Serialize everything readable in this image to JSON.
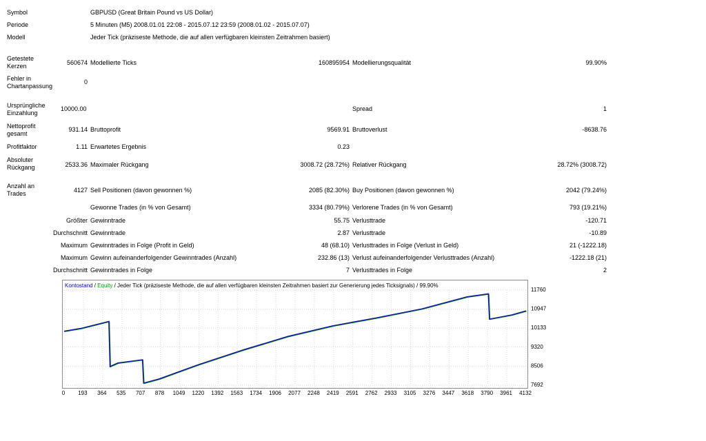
{
  "header": [
    {
      "label": "Symbol",
      "value": "GBPUSD (Great Britain Pound vs US Dollar)"
    },
    {
      "label": "Periode",
      "value": "5 Minuten (M5) 2008.01.01 22:08 - 2015.07.12 23:59 (2008.01.02 - 2015.07.07)"
    },
    {
      "label": "Modell",
      "value": "Jeder Tick (präziseste Methode, die auf allen verfügbaren kleinsten Zeitrahmen basiert)"
    }
  ],
  "stats": {
    "getestete_kerzen": {
      "l1": "Getestete",
      "l2": "Kerzen",
      "value": "560674"
    },
    "modellierte_ticks": {
      "label": "Modellierte Ticks",
      "value": "160895954"
    },
    "modellierungsqualitaet": {
      "label": "Modellierungsqualität",
      "value": "99.90%"
    },
    "fehler": {
      "l1": "Fehler in",
      "l2": "Chartanpassung",
      "value": "0"
    },
    "einzahlung": {
      "l1": "Ursprüngliche",
      "l2": "Einzahlung",
      "value": "10000.00"
    },
    "spread": {
      "label": "Spread",
      "value": "1"
    },
    "nettoprofit": {
      "l1": "Nettoprofit",
      "l2": "gesamt",
      "value": "931.14"
    },
    "bruttoprofit": {
      "label": "Bruttoprofit",
      "value": "9569.91"
    },
    "bruttoverlust": {
      "label": "Bruttoverlust",
      "value": "-8638.76"
    },
    "profitfaktor": {
      "label": "Profitfaktor",
      "value": "1.11"
    },
    "erwartetes": {
      "label": "Erwartetes Ergebnis",
      "value": "0.23"
    },
    "abs_rueckgang": {
      "l1": "Absoluter",
      "l2": "Rückgang",
      "value": "2533.36"
    },
    "max_rueckgang": {
      "label": "Maximaler Rückgang",
      "value": "3008.72 (28.72%)"
    },
    "rel_rueckgang": {
      "label": "Relativer Rückgang",
      "value": "28.72% (3008.72)"
    },
    "anzahl_trades": {
      "l1": "Anzahl an",
      "l2": "Trades",
      "value": "4127"
    },
    "sell": {
      "label": "Sell Positionen (davon gewonnen %)",
      "value": "2085 (82.30%)"
    },
    "buy": {
      "label": "Buy Positionen (davon gewonnen %)",
      "value": "2042 (79.24%)"
    },
    "gewonnene": {
      "label": "Gewonne Trades (in % von Gesamt)",
      "value": "3334 (80.79%)"
    },
    "verlorene": {
      "label": "Verlorene Trades (in % von Gesamt)",
      "value": "793 (19.21%)"
    },
    "rows": [
      {
        "prefix": "Größter",
        "label1": "Gewinntrade",
        "value1": "55.75",
        "label2": "Verlusttrade",
        "value2": "-120.71"
      },
      {
        "prefix": "Durchschnitt",
        "label1": "Gewinntrade",
        "value1": "2.87",
        "label2": "Verlusttrade",
        "value2": "-10.89"
      },
      {
        "prefix": "Maximum",
        "label1": "Gewinntrades in Folge (Profit in Geld)",
        "value1": "48 (68.10)",
        "label2": "Verlusttrades in Folge (Verlust in Geld)",
        "value2": "21 (-1222.18)"
      },
      {
        "prefix": "Maximum",
        "label1": "Gewinn aufeinanderfolgender Gewinntrades (Anzahl)",
        "value1": "232.86 (13)",
        "label2": "Verlust aufeinanderfolgender Verlusttrades (Anzahl)",
        "value2": "-1222.18 (21)"
      },
      {
        "prefix": "Durchschnitt",
        "label1": "Gewinntrades in Folge",
        "value1": "7",
        "label2": "Verlusttrades in Folge",
        "value2": "2"
      }
    ]
  },
  "chart_data": {
    "type": "line",
    "legend_parts": {
      "kontostand": "Kontostand",
      "sep": " / ",
      "equity": "Equity",
      "rest": " / Jeder Tick (präziseste Methode, die auf allen verfügbaren kleinsten Zeitrahmen basiert zur Generierung jedes Ticksignals) / 99.90%"
    },
    "x_ticks": [
      "0",
      "193",
      "364",
      "535",
      "707",
      "878",
      "1049",
      "1220",
      "1392",
      "1563",
      "1734",
      "1906",
      "2077",
      "2248",
      "2419",
      "2591",
      "2762",
      "2933",
      "3105",
      "3276",
      "3447",
      "3618",
      "3790",
      "3961",
      "4132"
    ],
    "y_ticks": [
      "11760",
      "10947",
      "10133",
      "9320",
      "8506",
      "7692"
    ],
    "xlim": [
      0,
      4127
    ],
    "ylim": [
      7692,
      11760
    ],
    "colors": {
      "balance": "#1a1aa0",
      "equity": "#00a000",
      "grid": "#d8d8d8"
    },
    "series": [
      {
        "name": "Kontostand",
        "x": [
          0,
          150,
          400,
          410,
          480,
          700,
          710,
          850,
          1200,
          1600,
          2000,
          2400,
          2800,
          3200,
          3600,
          3790,
          3800,
          4000,
          4127
        ],
        "y": [
          10000,
          10120,
          10420,
          8490,
          8640,
          8780,
          7780,
          7960,
          8570,
          9200,
          9780,
          10230,
          10580,
          10960,
          11470,
          11600,
          10520,
          10700,
          10870
        ]
      }
    ]
  }
}
